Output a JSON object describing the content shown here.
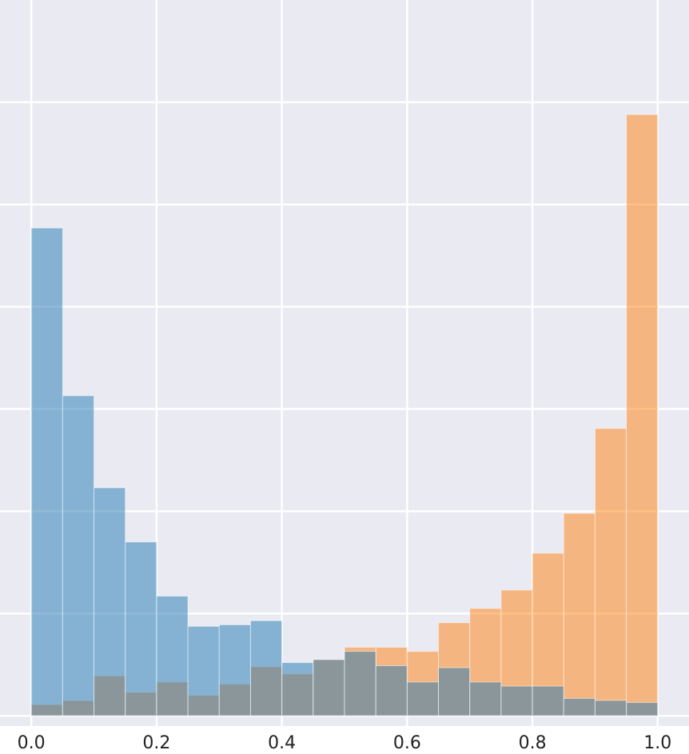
{
  "chart_data": {
    "type": "histogram",
    "bins": [
      0,
      0.05,
      0.1,
      0.15,
      0.2,
      0.25,
      0.3,
      0.35,
      0.4,
      0.45,
      0.5,
      0.55,
      0.6,
      0.65,
      0.7,
      0.75,
      0.8,
      0.85,
      0.9,
      0.95,
      1.0
    ],
    "series": [
      {
        "color": "#ff7f0e",
        "values": [
          0.11,
          0.15,
          0.39,
          0.23,
          0.33,
          0.2,
          0.31,
          0.48,
          0.41,
          0.55,
          0.67,
          0.67,
          0.63,
          0.91,
          1.05,
          1.23,
          1.59,
          1.98,
          2.81,
          5.88
        ]
      },
      {
        "color": "#1f77b4",
        "values": [
          4.77,
          3.13,
          2.23,
          1.7,
          1.17,
          0.875,
          0.89,
          0.93,
          0.52,
          0.55,
          0.63,
          0.49,
          0.33,
          0.47,
          0.33,
          0.29,
          0.29,
          0.17,
          0.15,
          0.13
        ]
      }
    ],
    "opacity": 0.5,
    "background": "#eaeaf2",
    "xlim": [
      -0.05,
      1.05
    ],
    "xticks": [
      {
        "value": 0,
        "label": "0.0"
      },
      0.2,
      0.4,
      0.6,
      0.8,
      {
        "value": 1,
        "label": "1.0"
      }
    ],
    "ylim": [
      -0.1,
      7
    ],
    "ygrid": [
      0,
      1,
      2,
      3,
      4,
      5,
      6
    ],
    "grid": true
  }
}
